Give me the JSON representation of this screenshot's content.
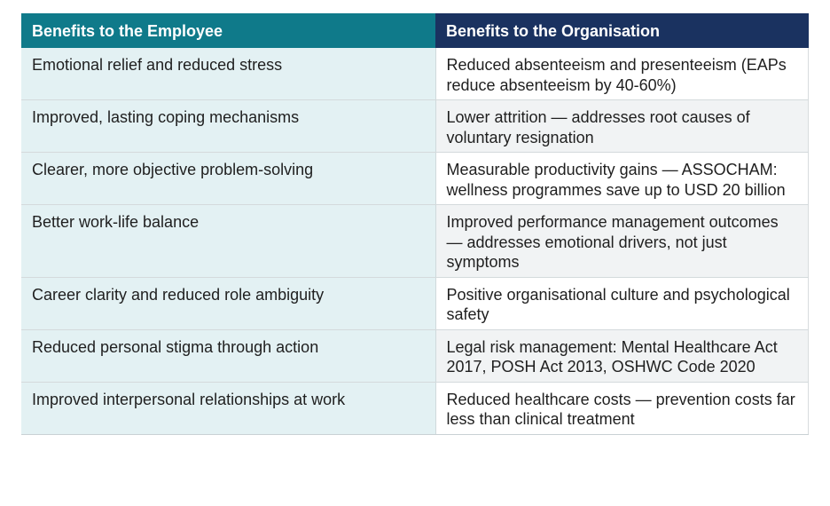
{
  "table": {
    "headers": {
      "employee": "Benefits to the Employee",
      "organisation": "Benefits to the Organisation"
    },
    "rows": [
      {
        "employee": "Emotional relief and reduced stress",
        "organisation": "Reduced absenteeism and presenteeism (EAPs reduce absenteeism by 40-60%)"
      },
      {
        "employee": "Improved, lasting coping mechanisms",
        "organisation": "Lower attrition — addresses root causes of voluntary resignation"
      },
      {
        "employee": "Clearer, more objective problem-solving",
        "organisation": "Measurable productivity gains — ASSOCHAM: wellness programmes save up to USD 20 billion"
      },
      {
        "employee": "Better work-life balance",
        "organisation": "Improved performance management outcomes — addresses emotional drivers, not just symptoms"
      },
      {
        "employee": "Career clarity and reduced role ambiguity",
        "organisation": "Positive organisational culture and psychological safety"
      },
      {
        "employee": "Reduced personal stigma through action",
        "organisation": "Legal risk management: Mental Healthcare Act 2017, POSH Act 2013, OSHWC Code 2020"
      },
      {
        "employee": "Improved interpersonal relationships at work",
        "organisation": "Reduced healthcare costs — prevention costs far less than clinical treatment"
      }
    ]
  },
  "colors": {
    "employee_header": "#0f7a8a",
    "organisation_header": "#1a3260",
    "employee_cell": "#e3f1f3",
    "organisation_cell_alt": "#f1f3f4"
  }
}
